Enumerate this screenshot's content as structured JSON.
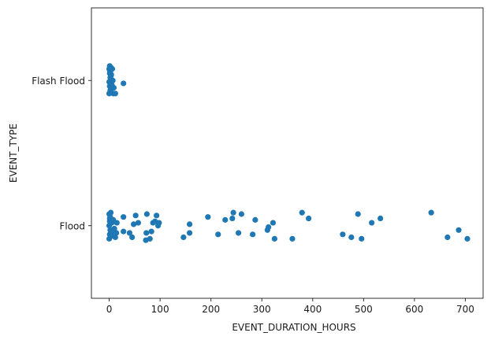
{
  "chart_data": {
    "type": "scatter",
    "title": "",
    "xlabel": "EVENT_DURATION_HOURS",
    "ylabel": "EVENT_TYPE",
    "xlim": [
      -35,
      735
    ],
    "x_ticks": [
      0,
      100,
      200,
      300,
      400,
      500,
      600,
      700
    ],
    "categories": [
      "Flash Flood",
      "Flood"
    ],
    "point_color": "#1f77b4",
    "grid": false,
    "legend": "none",
    "series": [
      {
        "category": "Flash Flood",
        "points": [
          {
            "x": 0,
            "j": -0.08
          },
          {
            "x": 1,
            "j": -0.05
          },
          {
            "x": 2,
            "j": -0.02
          },
          {
            "x": 0,
            "j": 0.01
          },
          {
            "x": 1,
            "j": 0.04
          },
          {
            "x": 2,
            "j": 0.07
          },
          {
            "x": 3,
            "j": -0.09
          },
          {
            "x": 0,
            "j": 0.09
          },
          {
            "x": 4,
            "j": 0.02
          },
          {
            "x": 2,
            "j": -0.06
          },
          {
            "x": 5,
            "j": 0.05
          },
          {
            "x": 3,
            "j": -0.03
          },
          {
            "x": 1,
            "j": -0.1
          },
          {
            "x": 6,
            "j": -0.08
          },
          {
            "x": 8,
            "j": 0.09
          },
          {
            "x": 12,
            "j": 0.09
          },
          {
            "x": 5,
            "j": 0.03
          },
          {
            "x": 4,
            "j": -0.04
          },
          {
            "x": 28,
            "j": 0.02
          },
          {
            "x": 7,
            "j": 0.0
          },
          {
            "x": 3,
            "j": 0.06
          },
          {
            "x": 1,
            "j": -0.07
          },
          {
            "x": 9,
            "j": 0.05
          }
        ]
      },
      {
        "category": "Flood",
        "points": [
          {
            "x": 0,
            "j": 0.09
          },
          {
            "x": 1,
            "j": 0.06
          },
          {
            "x": 2,
            "j": 0.03
          },
          {
            "x": 0,
            "j": 0.0
          },
          {
            "x": 1,
            "j": -0.03
          },
          {
            "x": 2,
            "j": -0.06
          },
          {
            "x": 3,
            "j": -0.09
          },
          {
            "x": 0,
            "j": -0.08
          },
          {
            "x": 1,
            "j": -0.05
          },
          {
            "x": 4,
            "j": 0.04
          },
          {
            "x": 5,
            "j": -0.02
          },
          {
            "x": 6,
            "j": 0.07
          },
          {
            "x": 8,
            "j": -0.04
          },
          {
            "x": 10,
            "j": 0.02
          },
          {
            "x": 12,
            "j": 0.08
          },
          {
            "x": 15,
            "j": -0.02
          },
          {
            "x": 14,
            "j": 0.05
          },
          {
            "x": 28,
            "j": 0.04
          },
          {
            "x": 28,
            "j": -0.06
          },
          {
            "x": 40,
            "j": 0.05
          },
          {
            "x": 45,
            "j": 0.08
          },
          {
            "x": 48,
            "j": -0.01
          },
          {
            "x": 52,
            "j": -0.07
          },
          {
            "x": 57,
            "j": -0.02
          },
          {
            "x": 72,
            "j": 0.1
          },
          {
            "x": 73,
            "j": 0.05
          },
          {
            "x": 74,
            "j": -0.08
          },
          {
            "x": 80,
            "j": 0.09
          },
          {
            "x": 83,
            "j": 0.04
          },
          {
            "x": 86,
            "j": -0.02
          },
          {
            "x": 90,
            "j": -0.03
          },
          {
            "x": 93,
            "j": -0.07
          },
          {
            "x": 96,
            "j": 0.0
          },
          {
            "x": 98,
            "j": -0.02
          },
          {
            "x": 146,
            "j": 0.08
          },
          {
            "x": 158,
            "j": 0.05
          },
          {
            "x": 158,
            "j": -0.01
          },
          {
            "x": 194,
            "j": -0.06
          },
          {
            "x": 214,
            "j": 0.06
          },
          {
            "x": 228,
            "j": -0.04
          },
          {
            "x": 242,
            "j": -0.05
          },
          {
            "x": 244,
            "j": -0.09
          },
          {
            "x": 254,
            "j": 0.05
          },
          {
            "x": 260,
            "j": -0.08
          },
          {
            "x": 282,
            "j": 0.06
          },
          {
            "x": 287,
            "j": -0.04
          },
          {
            "x": 311,
            "j": 0.03
          },
          {
            "x": 313,
            "j": 0.01
          },
          {
            "x": 322,
            "j": -0.02
          },
          {
            "x": 325,
            "j": 0.09
          },
          {
            "x": 360,
            "j": 0.09
          },
          {
            "x": 379,
            "j": -0.09
          },
          {
            "x": 392,
            "j": -0.05
          },
          {
            "x": 459,
            "j": 0.06
          },
          {
            "x": 476,
            "j": 0.08
          },
          {
            "x": 489,
            "j": -0.08
          },
          {
            "x": 496,
            "j": 0.09
          },
          {
            "x": 516,
            "j": -0.02
          },
          {
            "x": 533,
            "j": -0.05
          },
          {
            "x": 633,
            "j": -0.09
          },
          {
            "x": 665,
            "j": 0.08
          },
          {
            "x": 687,
            "j": 0.03
          },
          {
            "x": 704,
            "j": 0.09
          }
        ]
      }
    ]
  }
}
